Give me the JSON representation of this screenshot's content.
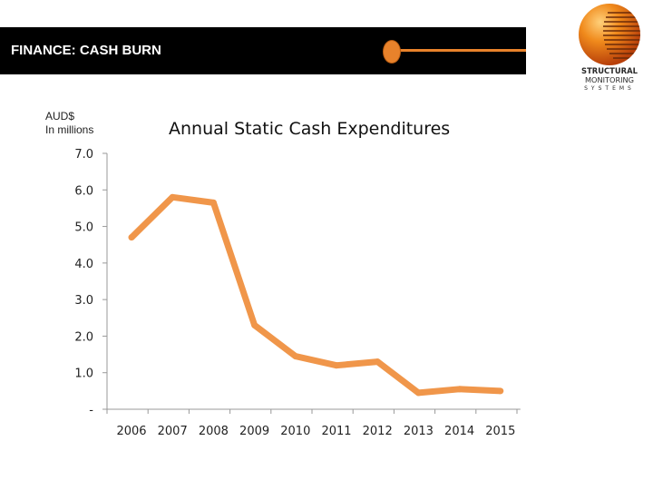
{
  "header": {
    "title": "FINANCE: CASH BURN",
    "accent_color": "#e8822b",
    "bar_color": "#000000"
  },
  "logo": {
    "icon": "sphere-logo-icon",
    "line1": "STRUCTURAL",
    "line2": "MONITORING",
    "line3": "SYSTEMS"
  },
  "chart_data": {
    "type": "line",
    "title": "Annual Static Cash Expenditures",
    "ylabel_lines": [
      "AUD$",
      "In millions"
    ],
    "xlabel": "",
    "categories": [
      "2006",
      "2007",
      "2008",
      "2009",
      "2010",
      "2011",
      "2012",
      "2013",
      "2014",
      "2015"
    ],
    "series": [
      {
        "values": [
          4.7,
          5.8,
          5.65,
          2.3,
          1.45,
          1.2,
          1.3,
          0.45,
          0.55,
          0.5
        ]
      }
    ],
    "ylim": [
      0,
      7
    ],
    "yticks": [
      {
        "value": 0,
        "label": "-"
      },
      {
        "value": 1,
        "label": "1.0"
      },
      {
        "value": 2,
        "label": "2.0"
      },
      {
        "value": 3,
        "label": "3.0"
      },
      {
        "value": 4,
        "label": "4.0"
      },
      {
        "value": 5,
        "label": "5.0"
      },
      {
        "value": 6,
        "label": "6.0"
      },
      {
        "value": 7,
        "label": "7.0"
      }
    ],
    "grid": false,
    "legend": "none",
    "line_color": "#f0964a"
  }
}
